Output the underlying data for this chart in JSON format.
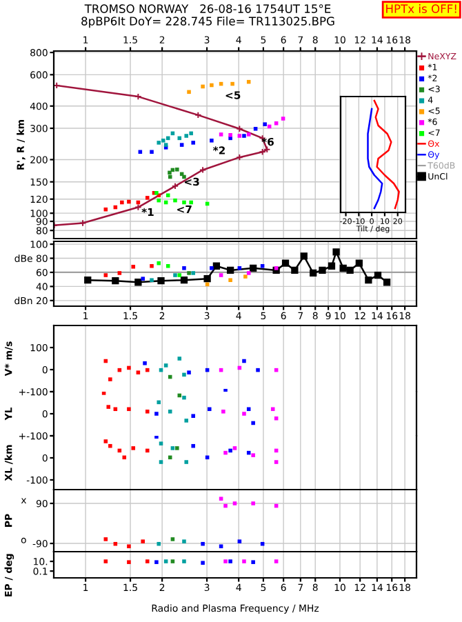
{
  "chart_data": [
    {
      "type": "scatter",
      "title": "TROMSO NORWAY   26-08-16 1754UT 15°E",
      "subtitle": "8pBP6It DoY= 228.745 File= TR113025.BPG",
      "ylabel": "R', R / km",
      "log": "xy",
      "grid": true,
      "legend": "right",
      "marker": "square",
      "xlim": [
        0.75,
        20
      ],
      "xticks": [
        1,
        1.5,
        2,
        3,
        4,
        5,
        6,
        7,
        8,
        10,
        12,
        14,
        16,
        18
      ],
      "ylim": [
        72,
        815
      ],
      "yticks": [
        80,
        90,
        100,
        120,
        150,
        200,
        300,
        400,
        600,
        800
      ],
      "series": [
        {
          "name": "NeXYZ",
          "type": "line",
          "marker": "cross",
          "color": "#a0143c",
          "x": [
            0.77,
            1.61,
            2.77,
            4.03,
            4.96,
            5.17,
            4.96,
            4.03,
            2.89,
            2.25,
            1.61,
            0.975,
            0.753
          ],
          "values": [
            522,
            452,
            356,
            298,
            264,
            228,
            221,
            206,
            175,
            142,
            108,
            88,
            85.5
          ]
        },
        {
          "name": "*1",
          "color": "#ff0000",
          "x": [
            1.2,
            1.31,
            1.39,
            1.48,
            1.61,
            1.75,
            1.86,
            1.94
          ],
          "values": [
            105,
            108,
            115,
            116,
            115,
            122,
            130,
            126
          ]
        },
        {
          "name": "*2",
          "color": "#0000ff",
          "x": [
            1.64,
            1.82,
            2.07,
            2.39,
            2.65,
            3.13,
            3.71,
            4.2,
            4.66,
            5.07
          ],
          "values": [
            221,
            221,
            234,
            242,
            249,
            256,
            264,
            272,
            298,
            316
          ]
        },
        {
          "name": "<3",
          "color": "#228b22",
          "x": [
            2.14,
            2.2,
            2.29,
            2.39,
            2.44,
            2.15
          ],
          "values": [
            169,
            175,
            176,
            166,
            160,
            160
          ]
        },
        {
          "name": "4",
          "color": "#00a0a0",
          "x": [
            1.94,
            2.02,
            2.11,
            2.2,
            2.34,
            2.49,
            2.6,
            2.07
          ],
          "values": [
            249,
            256,
            264,
            281,
            264,
            272,
            281,
            242
          ]
        },
        {
          "name": "<5",
          "color": "#ffa000",
          "x": [
            2.55,
            2.89,
            3.13,
            3.41,
            3.78,
            4.38
          ],
          "values": [
            480,
            515,
            524,
            533,
            533,
            547
          ]
        },
        {
          "name": "*6",
          "color": "#ff00ff",
          "x": [
            3.41,
            3.71,
            4.03,
            4.38,
            5.28,
            5.62,
            5.98
          ],
          "values": [
            277,
            275,
            272,
            277,
            307,
            320,
            340
          ]
        },
        {
          "name": "<7",
          "color": "#00ff00",
          "x": [
            1.9,
            1.94,
            2.07,
            2.25,
            2.44,
            2.6,
            3.01,
            2.11
          ],
          "values": [
            130,
            118,
            115,
            118,
            115,
            115,
            113,
            126
          ]
        }
      ],
      "annotations": [
        "HPTx is OFF!",
        {
          "text": "*1",
          "x": 1.64,
          "y": 108
        },
        {
          "text": "*2",
          "x": 3.13,
          "y": 240
        },
        {
          "text": "<3",
          "x": 2.44,
          "y": 160
        },
        {
          "text": "<5",
          "x": 3.54,
          "y": 490
        },
        {
          "text": "*6",
          "x": 4.86,
          "y": 268
        },
        {
          "text": "<7",
          "x": 2.28,
          "y": 112
        }
      ]
    },
    {
      "type": "line",
      "orientation": "horizontal",
      "xlabel": "Tilt / deg",
      "grid": "x",
      "tick_labels": "x",
      "legend": "right",
      "xlim": [
        -24,
        26
      ],
      "xticks": [
        -20,
        -10,
        0,
        10,
        20
      ],
      "categories": [
        null,
        null,
        null,
        null,
        null,
        null,
        null,
        null,
        null,
        null,
        null,
        null,
        null,
        null
      ],
      "series": [
        {
          "name": "Θx",
          "color": "#ff0000",
          "values": [
            2,
            5,
            3,
            5,
            12,
            15,
            13,
            5,
            4,
            10,
            17,
            21,
            20,
            18
          ]
        },
        {
          "name": "Θy",
          "color": "#0000ff",
          "values": [
            null,
            0,
            -1,
            -2,
            -3,
            -3,
            -3,
            -3,
            -2,
            2,
            8,
            7,
            5,
            2
          ]
        }
      ]
    },
    {
      "type": "scatter",
      "log": "x",
      "grid": true,
      "marker": "square",
      "legend": "right",
      "xlim": [
        0.75,
        20
      ],
      "xticks": [
        1,
        1.5,
        2,
        3,
        4,
        5,
        6,
        7,
        8,
        9,
        10,
        12,
        14,
        16,
        18
      ],
      "ylim": [
        12,
        104
      ],
      "yticks": [
        {
          "value": 100,
          "label": "100"
        },
        {
          "value": 80,
          "label": "dBe 80"
        },
        {
          "value": 60,
          "label": "60"
        },
        {
          "value": 40,
          "label": "40"
        },
        {
          "value": 20,
          "label": "dBn 20"
        }
      ],
      "ref_lines": [
        {
          "axis": "y",
          "value": 60,
          "label": "T60dB",
          "color": "#a0a0a0"
        }
      ],
      "series": [
        {
          "name": "UnCl",
          "type": "line",
          "color": "#000000",
          "x": [
            1.02,
            1.31,
            1.61,
            1.98,
            2.44,
            3.01,
            3.27,
            3.71,
            4.56,
            5.62,
            6.11,
            6.64,
            7.22,
            7.85,
            8.53,
            9.28,
            9.67,
            10.3,
            10.96,
            11.9,
            12.95,
            14.1,
            15.3
          ],
          "values": [
            49,
            48,
            46,
            48,
            49,
            51,
            69,
            63,
            66,
            63,
            73,
            63,
            83,
            59,
            63,
            69,
            89,
            66,
            63,
            73,
            49,
            56,
            46
          ]
        },
        {
          "color": "#ff0000",
          "x": [
            1.2,
            1.36,
            1.54,
            1.82
          ],
          "values": [
            56,
            59,
            68,
            69
          ]
        },
        {
          "color": "#00ff00",
          "x": [
            1.94,
            2.11,
            2.34
          ],
          "values": [
            73,
            69,
            56
          ]
        },
        {
          "color": "#0000ff",
          "x": [
            1.68,
            2.44,
            3.13,
            4.03,
            4.96
          ],
          "values": [
            51,
            66,
            66,
            66,
            69
          ]
        },
        {
          "color": "#00a0a0",
          "x": [
            1.82,
            2.25,
            2.65
          ],
          "values": [
            49,
            56,
            59
          ]
        },
        {
          "color": "#ffa000",
          "x": [
            3.01,
            3.71,
            4.25
          ],
          "values": [
            43,
            49,
            54
          ]
        },
        {
          "color": "#ff00ff",
          "x": [
            3.41,
            4.38,
            5.62
          ],
          "values": [
            56,
            59,
            66
          ]
        },
        {
          "color": "#228b22",
          "x": [
            2.55
          ],
          "values": [
            59
          ]
        }
      ]
    },
    {
      "type": "scatter",
      "log": "x",
      "grid": "x",
      "tick_labels": "y",
      "marker": "square",
      "ylabel": "V* m/s",
      "xlim": [
        0.75,
        20
      ],
      "xticks": [
        1,
        1.5,
        2,
        3,
        4,
        5,
        6,
        7,
        8,
        10,
        12,
        14,
        16,
        18
      ],
      "ylim": [
        -100,
        200
      ],
      "yticks": [
        {
          "value": 100,
          "label": "100"
        },
        {
          "value": 0,
          "label": "0"
        },
        {
          "value": -100,
          "label": "+-100"
        }
      ],
      "series": [
        {
          "color": "#ff0000",
          "x": [
            1.2,
            1.25,
            1.36,
            1.48,
            1.61,
            1.75
          ],
          "values": [
            39,
            -44,
            -2,
            8,
            -13,
            -2
          ]
        },
        {
          "color": "#00a0a0",
          "x": [
            1.98,
            2.34,
            2.44,
            2.07
          ],
          "values": [
            -2,
            50,
            -23,
            19
          ]
        },
        {
          "color": "#228b22",
          "x": [
            2.15
          ],
          "values": [
            -33
          ]
        },
        {
          "color": "#0000ff",
          "x": [
            1.71,
            2.55,
            3.01,
            4.2,
            4.76,
            3.55
          ],
          "values": [
            29,
            -13,
            -2,
            39,
            -2,
            -96
          ]
        },
        {
          "color": "#ff00ff",
          "x": [
            3.41,
            4.03,
            5.62
          ],
          "values": [
            -2,
            8,
            -2
          ]
        }
      ]
    },
    {
      "type": "scatter",
      "log": "x",
      "grid": "x",
      "tick_labels": "y",
      "marker": "square",
      "ylabel": "YL",
      "xlim": [
        0.75,
        20
      ],
      "xticks": [
        1,
        1.5,
        2,
        3,
        4,
        5,
        6,
        7,
        8,
        10,
        12,
        14,
        16,
        18
      ],
      "ylim": [
        -100,
        100
      ],
      "yticks": [
        {
          "value": 100,
          "label": null
        },
        {
          "value": 0,
          "label": "0"
        },
        {
          "value": -100,
          "label": "+-100"
        }
      ],
      "series": [
        {
          "color": "#ff0000",
          "x": [
            1.18,
            1.23,
            1.31,
            1.48,
            1.75
          ],
          "values": [
            94,
            31,
            21,
            21,
            10
          ]
        },
        {
          "color": "#00a0a0",
          "x": [
            1.94,
            2.15,
            2.44,
            2.49
          ],
          "values": [
            52,
            10,
            73,
            -31
          ]
        },
        {
          "color": "#228b22",
          "x": [
            2.34
          ],
          "values": [
            83
          ]
        },
        {
          "color": "#0000ff",
          "x": [
            1.9,
            2.65,
            3.07,
            4.38,
            4.56
          ],
          "values": [
            0,
            -10,
            21,
            21,
            -42
          ]
        },
        {
          "color": "#ff00ff",
          "x": [
            3.48,
            4.2,
            5.62,
            5.45
          ],
          "values": [
            10,
            0,
            -21,
            21
          ]
        }
      ]
    },
    {
      "type": "scatter",
      "log": "x",
      "grid": "x",
      "tick_labels": "y",
      "marker": "square",
      "ylabel": "XL /km",
      "xlim": [
        0.75,
        20
      ],
      "xticks": [
        1,
        1.5,
        2,
        3,
        4,
        5,
        6,
        7,
        8,
        10,
        12,
        14,
        16,
        18
      ],
      "ylim": [
        -144,
        100
      ],
      "yticks": [
        {
          "value": 100,
          "label": null
        },
        {
          "value": 0,
          "label": "0"
        },
        {
          "value": -100,
          "label": "-100"
        }
      ],
      "series": [
        {
          "color": "#ff0000",
          "x": [
            1.2,
            1.25,
            1.36,
            1.54,
            1.75,
            1.42
          ],
          "values": [
            75,
            54,
            33,
            44,
            33,
            2
          ]
        },
        {
          "color": "#00a0a0",
          "x": [
            1.98,
            2.2,
            2.49,
            1.98
          ],
          "values": [
            -19,
            44,
            -19,
            65
          ]
        },
        {
          "color": "#228b22",
          "x": [
            2.29,
            2.15
          ],
          "values": [
            44,
            2
          ]
        },
        {
          "color": "#0000ff",
          "x": [
            1.9,
            2.65,
            3.01,
            3.71,
            4.38
          ],
          "values": [
            96,
            54,
            2,
            33,
            23
          ]
        },
        {
          "color": "#ff00ff",
          "x": [
            3.55,
            3.86,
            4.56,
            5.62,
            5.62
          ],
          "values": [
            23,
            44,
            12,
            33,
            -19
          ]
        }
      ]
    },
    {
      "type": "scatter",
      "log": "x",
      "grid": true,
      "tick_labels": "y",
      "marker": "square",
      "ylabel": "PP",
      "xlim": [
        0.75,
        20
      ],
      "xticks": [
        1,
        1.5,
        2,
        3,
        4,
        5,
        6,
        7,
        8,
        10,
        12,
        14,
        16,
        18
      ],
      "ylim": [
        -127,
        152
      ],
      "yticks": [
        90,
        -90
      ],
      "annotations": [
        "x",
        "o"
      ],
      "series": [
        {
          "color": "#ff00ff",
          "x": [
            3.55,
            3.86,
            4.56,
            5.62,
            3.41
          ],
          "values": [
            79,
            90,
            90,
            79,
            111
          ]
        },
        {
          "color": "#ff0000",
          "x": [
            1.2,
            1.31,
            1.48,
            1.68
          ],
          "values": [
            -71,
            -92,
            -103,
            -81
          ]
        },
        {
          "color": "#00a0a0",
          "x": [
            1.94,
            2.44
          ],
          "values": [
            -92,
            -81
          ]
        },
        {
          "color": "#228b22",
          "x": [
            2.2
          ],
          "values": [
            -71
          ]
        },
        {
          "color": "#0000ff",
          "x": [
            2.89,
            3.41,
            4.03,
            4.96
          ],
          "values": [
            -92,
            -103,
            -81,
            -92
          ]
        }
      ]
    },
    {
      "type": "scatter",
      "log": "xy",
      "grid": "x",
      "marker": "square",
      "ylabel": "EP / deg",
      "xlabel": "Radio and Plasma Frequency / MHz",
      "xlim": [
        0.75,
        20
      ],
      "xticks": [
        1,
        1.5,
        2,
        3,
        4,
        5,
        6,
        7,
        8,
        10,
        12,
        14,
        16,
        18
      ],
      "ylim": [
        0.004,
        1000
      ],
      "yticks": [
        {
          "value": 10,
          "label": "10."
        },
        {
          "value": 0.1,
          "label": "0.1"
        }
      ],
      "series": [
        {
          "color": "#ff0000",
          "x": [
            1.2,
            1.48,
            1.75
          ],
          "values": [
            10,
            7,
            10
          ]
        },
        {
          "color": "#00a0a0",
          "x": [
            2.07,
            2.44
          ],
          "values": [
            10,
            10
          ]
        },
        {
          "color": "#228b22",
          "x": [
            2.2
          ],
          "values": [
            10
          ]
        },
        {
          "color": "#0000ff",
          "x": [
            1.9,
            2.89,
            3.71,
            4.56
          ],
          "values": [
            7,
            5,
            10,
            7
          ]
        },
        {
          "color": "#ff00ff",
          "x": [
            3.55,
            4.2,
            5.62
          ],
          "values": [
            10,
            10,
            10
          ]
        }
      ]
    }
  ]
}
